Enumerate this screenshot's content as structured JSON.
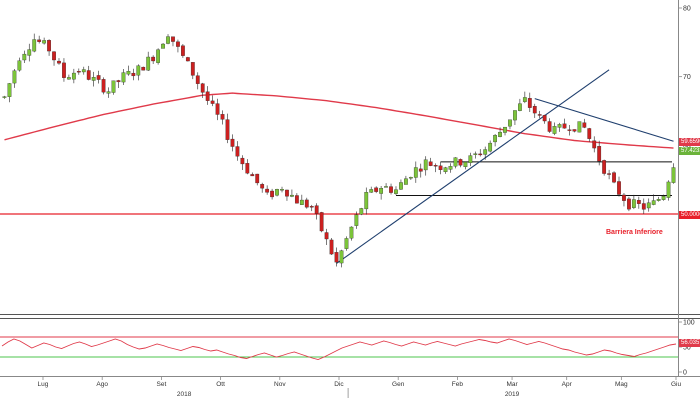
{
  "toolbar": {
    "icons": [
      "crosshair-icon",
      "move-icon",
      "line-icon",
      "pencil-icon",
      "zoom-icon"
    ],
    "counter": "0"
  },
  "colors": {
    "up": "#7cc43a",
    "down": "#cc2020",
    "ma": "#e03a4a",
    "trendline": "#1f3f6e",
    "barrier": "#e8202a",
    "rsi": "#e03a4a",
    "rsi_upper": "#e03a4a",
    "rsi_lower": "#4cc64c"
  },
  "chart_data": [
    {
      "type": "candlestick",
      "title": "",
      "x_tick_labels": [
        "Lug",
        "Ago",
        "Set",
        "Ott",
        "Nov",
        "Dic",
        "Gen",
        "Feb",
        "Mar",
        "Apr",
        "Mag",
        "Giu"
      ],
      "year_labels": [
        "2018",
        "2019"
      ],
      "y_tick_labels": [
        "80",
        "70",
        "60",
        "50"
      ],
      "ylim": [
        40,
        82
      ],
      "price_labels": {
        "ma": "59.6590",
        "last": "57.4233",
        "barrier": "50.0000"
      },
      "annotation": "Barriera Inferiore",
      "barrier_level": 50,
      "resistance_levels": [
        57.6,
        52.7
      ],
      "price_path": [
        [
          0,
          67
        ],
        [
          3,
          73
        ],
        [
          6,
          75.5
        ],
        [
          9,
          74
        ],
        [
          12,
          70
        ],
        [
          15,
          71
        ],
        [
          18,
          69.5
        ],
        [
          21,
          68
        ],
        [
          24,
          70
        ],
        [
          27,
          71
        ],
        [
          30,
          73
        ],
        [
          33,
          76.5
        ],
        [
          35,
          74
        ],
        [
          38,
          70.5
        ],
        [
          41,
          66.5
        ],
        [
          44,
          63
        ],
        [
          47,
          58.5
        ],
        [
          50,
          55.5
        ],
        [
          53,
          52.5
        ],
        [
          56,
          54
        ],
        [
          59,
          52
        ],
        [
          62,
          51
        ],
        [
          65,
          46
        ],
        [
          67,
          42.8
        ],
        [
          70,
          48
        ],
        [
          73,
          52.5
        ],
        [
          76,
          54
        ],
        [
          79,
          53.5
        ],
        [
          82,
          56
        ],
        [
          85,
          57.5
        ],
        [
          88,
          57
        ],
        [
          91,
          57.5
        ],
        [
          94,
          58
        ],
        [
          97,
          59.5
        ],
        [
          100,
          62
        ],
        [
          103,
          65
        ],
        [
          105,
          66.5
        ],
        [
          108,
          64
        ],
        [
          111,
          62
        ],
        [
          114,
          63
        ],
        [
          117,
          62.5
        ],
        [
          120,
          58
        ],
        [
          123,
          54
        ],
        [
          126,
          51.5
        ],
        [
          129,
          51
        ],
        [
          131,
          51.5
        ],
        [
          133,
          53
        ],
        [
          135,
          57.4
        ]
      ],
      "ma_path": [
        [
          0,
          60.8
        ],
        [
          10,
          62.7
        ],
        [
          20,
          64.5
        ],
        [
          30,
          66
        ],
        [
          40,
          67.3
        ],
        [
          46,
          67.6
        ],
        [
          55,
          67.2
        ],
        [
          65,
          66.5
        ],
        [
          75,
          65.5
        ],
        [
          85,
          64.3
        ],
        [
          95,
          63
        ],
        [
          105,
          61.7
        ],
        [
          115,
          60.7
        ],
        [
          125,
          60.1
        ],
        [
          135,
          59.6
        ]
      ],
      "trendlines": [
        {
          "from": [
            67,
            42.8
          ],
          "to": [
            122,
            71
          ]
        },
        {
          "from": [
            107,
            66.8
          ],
          "to": [
            135,
            60.6
          ]
        }
      ]
    },
    {
      "type": "line",
      "title": "",
      "y_tick_labels": [
        "100",
        "50",
        "0"
      ],
      "ylim": [
        0,
        100
      ],
      "levels": [
        70,
        30
      ],
      "last_label": "56.0357",
      "values": [
        52,
        60,
        66,
        62,
        55,
        48,
        53,
        58,
        55,
        50,
        47,
        52,
        57,
        60,
        56,
        51,
        54,
        58,
        62,
        66,
        62,
        55,
        50,
        46,
        48,
        52,
        56,
        53,
        49,
        46,
        43,
        47,
        51,
        49,
        45,
        42,
        44,
        40,
        36,
        33,
        29,
        27,
        31,
        35,
        38,
        34,
        30,
        33,
        37,
        40,
        36,
        32,
        28,
        25,
        30,
        36,
        42,
        48,
        52,
        56,
        60,
        57,
        54,
        58,
        62,
        59,
        55,
        52,
        56,
        60,
        57,
        54,
        58,
        61,
        58,
        55,
        52,
        56,
        59,
        62,
        65,
        63,
        60,
        58,
        62,
        66,
        63,
        59,
        55,
        58,
        61,
        58,
        54,
        50,
        46,
        44,
        40,
        37,
        34,
        36,
        40,
        44,
        42,
        38,
        35,
        33,
        31,
        35,
        38,
        42,
        46,
        50,
        54,
        56
      ]
    }
  ]
}
